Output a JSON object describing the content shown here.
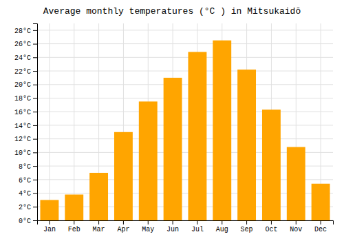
{
  "chart_data": {
    "type": "bar",
    "title": "Average monthly temperatures (°C ) in Mitsukaidō",
    "categories": [
      "Jan",
      "Feb",
      "Mar",
      "Apr",
      "May",
      "Jun",
      "Jul",
      "Aug",
      "Sep",
      "Oct",
      "Nov",
      "Dec"
    ],
    "values": [
      3.0,
      3.8,
      7.0,
      13.0,
      17.5,
      21.0,
      24.8,
      26.5,
      22.2,
      16.3,
      10.8,
      5.4
    ],
    "color": "#FFA500",
    "ylim": [
      0,
      29
    ],
    "yticks": [
      {
        "value": 0,
        "label": "0°C"
      },
      {
        "value": 2,
        "label": "2°C"
      },
      {
        "value": 4,
        "label": "4°C"
      },
      {
        "value": 6,
        "label": "6°C"
      },
      {
        "value": 8,
        "label": "8°C"
      },
      {
        "value": 10,
        "label": "10°C"
      },
      {
        "value": 12,
        "label": "12°C"
      },
      {
        "value": 14,
        "label": "14°C"
      },
      {
        "value": 16,
        "label": "16°C"
      },
      {
        "value": 18,
        "label": "18°C"
      },
      {
        "value": 20,
        "label": "20°C"
      },
      {
        "value": 22,
        "label": "22°C"
      },
      {
        "value": 24,
        "label": "24°C"
      },
      {
        "value": 26,
        "label": "26°C"
      },
      {
        "value": 28,
        "label": "28°C"
      }
    ],
    "grid": true
  }
}
